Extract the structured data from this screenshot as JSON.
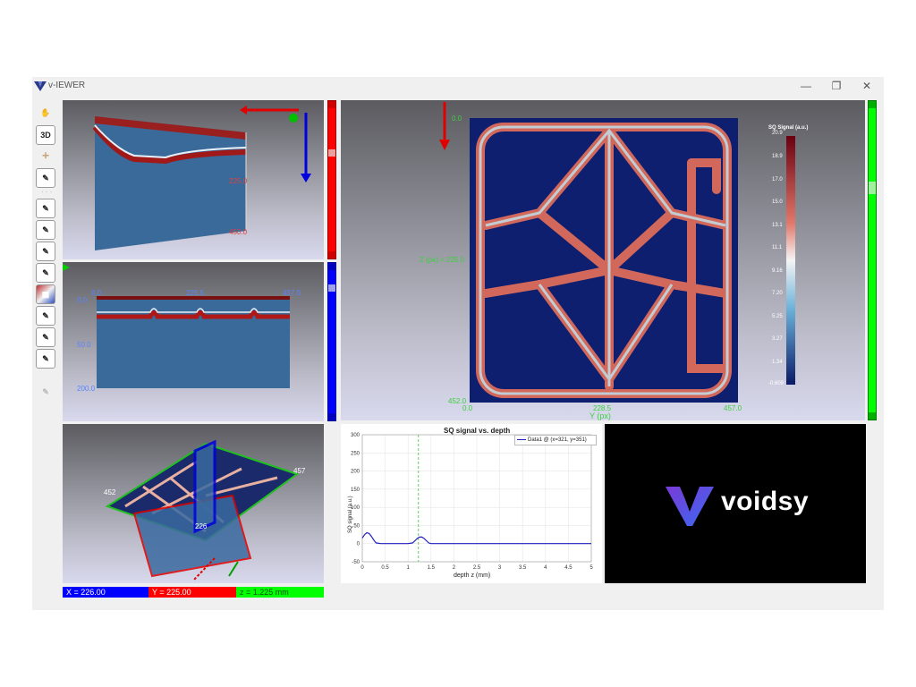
{
  "window": {
    "title": "v-IEWER",
    "controls": [
      "—",
      "❐",
      "✕"
    ]
  },
  "toolbar": {
    "items": [
      {
        "name": "hand-icon",
        "glyph": "✋"
      },
      {
        "name": "view-3d-button",
        "glyph": "3D"
      },
      {
        "name": "crosshair-icon",
        "glyph": "✛"
      },
      {
        "name": "tool-1-icon",
        "glyph": "✎"
      },
      {
        "name": "tool-2-icon",
        "glyph": "✎"
      },
      {
        "name": "tool-3-icon",
        "glyph": "✎"
      },
      {
        "name": "tool-4-icon",
        "glyph": "✎"
      },
      {
        "name": "tool-5-icon",
        "glyph": "✎"
      },
      {
        "name": "colormap-icon",
        "glyph": "▦"
      },
      {
        "name": "tool-6-icon",
        "glyph": "✎"
      },
      {
        "name": "tool-7-icon",
        "glyph": "✎"
      },
      {
        "name": "tool-8-icon",
        "glyph": "✎"
      },
      {
        "name": "tool-disabled-icon",
        "glyph": "✎"
      }
    ]
  },
  "top_left_view": {
    "ticks": [
      "225.0",
      "450.0"
    ]
  },
  "mid_left_view": {
    "x_ticks": [
      "0.0",
      "225.5",
      "457.0"
    ],
    "y_ticks": [
      "0.0",
      "50.0",
      "200.0"
    ]
  },
  "bottom_left_view": {
    "labels": [
      "452",
      "457",
      "226"
    ]
  },
  "main_view": {
    "ylabel": "Z (px) = 225.0",
    "xlabel": "Y (px)",
    "x_ticks": [
      "0.0",
      "228.5",
      "457.0"
    ],
    "y_ticks": [
      "0.0",
      "452.0"
    ],
    "colorbar_title": "SQ Signal (a.u.)",
    "colorbar_ticks": [
      "20.9",
      "18.9",
      "17.0",
      "15.0",
      "13.1",
      "11.1",
      "9.16",
      "7.20",
      "5.25",
      "3.27",
      "1.34",
      "-0.609"
    ]
  },
  "status": {
    "x": "X = 226.00",
    "y": "Y = 225.00",
    "z": "z = 1.225 mm"
  },
  "chart_data": {
    "type": "line",
    "title": "SQ signal vs. depth",
    "xlabel": "depth z (mm)",
    "ylabel": "SQ signal (a.u.)",
    "xlim": [
      0,
      5
    ],
    "ylim": [
      -50,
      300
    ],
    "x_ticks": [
      "0",
      "0.5",
      "1",
      "1.5",
      "2",
      "2.5",
      "3",
      "3.5",
      "4",
      "4.5",
      "5"
    ],
    "y_ticks": [
      "-50",
      "0",
      "50",
      "100",
      "150",
      "200",
      "250",
      "300"
    ],
    "marker_x": 1.225,
    "grid": true,
    "legend_position": "top-right",
    "series": [
      {
        "name": "Data1 @ (x=321, y=351)",
        "color": "#1f1fbf",
        "x": [
          0,
          0.05,
          0.1,
          0.15,
          0.2,
          0.25,
          0.3,
          0.4,
          0.6,
          0.8,
          1.0,
          1.1,
          1.15,
          1.2,
          1.25,
          1.3,
          1.35,
          1.4,
          1.45,
          1.5,
          1.7,
          2,
          3,
          4,
          5
        ],
        "y": [
          15,
          25,
          30,
          28,
          20,
          10,
          2,
          0,
          0,
          0,
          0,
          2,
          8,
          14,
          18,
          18,
          14,
          8,
          2,
          0,
          0,
          0,
          0,
          0,
          0
        ]
      }
    ]
  },
  "brand": {
    "name": "voidsy"
  },
  "colors": {
    "red": "#ff0000",
    "blue": "#0000ff",
    "green": "#00ff00"
  }
}
